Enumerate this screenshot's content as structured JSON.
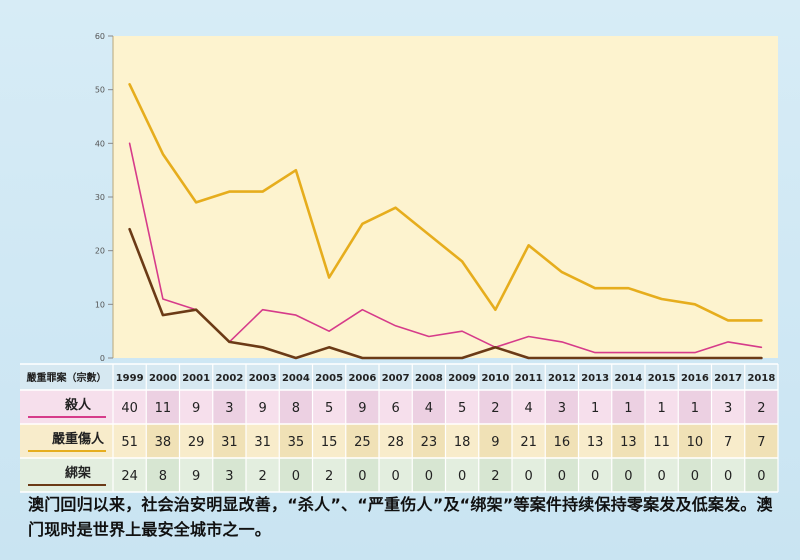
{
  "chart_data": {
    "type": "line",
    "x": [
      1999,
      2000,
      2001,
      2002,
      2003,
      2004,
      2005,
      2006,
      2007,
      2008,
      2009,
      2010,
      2011,
      2012,
      2013,
      2014,
      2015,
      2016,
      2017,
      2018
    ],
    "ylim": [
      0,
      60
    ],
    "y_ticks": [
      0,
      10,
      20,
      30,
      40,
      50,
      60
    ],
    "grid": false,
    "legend": "table-left",
    "table_header": "嚴重罪案（宗數）",
    "series": [
      {
        "name": "殺人",
        "color": "#d63b8a",
        "values": [
          40,
          11,
          9,
          3,
          9,
          8,
          5,
          9,
          6,
          4,
          5,
          2,
          4,
          3,
          1,
          1,
          1,
          1,
          3,
          2
        ]
      },
      {
        "name": "嚴重傷人",
        "color": "#e6ad1d",
        "values": [
          51,
          38,
          29,
          31,
          31,
          35,
          15,
          25,
          28,
          23,
          18,
          9,
          21,
          16,
          13,
          13,
          11,
          10,
          7,
          7
        ]
      },
      {
        "name": "綁架",
        "color": "#6b3a16",
        "values": [
          24,
          8,
          9,
          3,
          2,
          0,
          2,
          0,
          0,
          0,
          0,
          2,
          0,
          0,
          0,
          0,
          0,
          0,
          0,
          0
        ]
      }
    ]
  },
  "caption": "澳门回归以来，社会治安明显改善，“杀人”、“严重伤人”及“绑架”等案件持续保持零案发及低案发。澳门现时是世界上最安全城市之一。"
}
